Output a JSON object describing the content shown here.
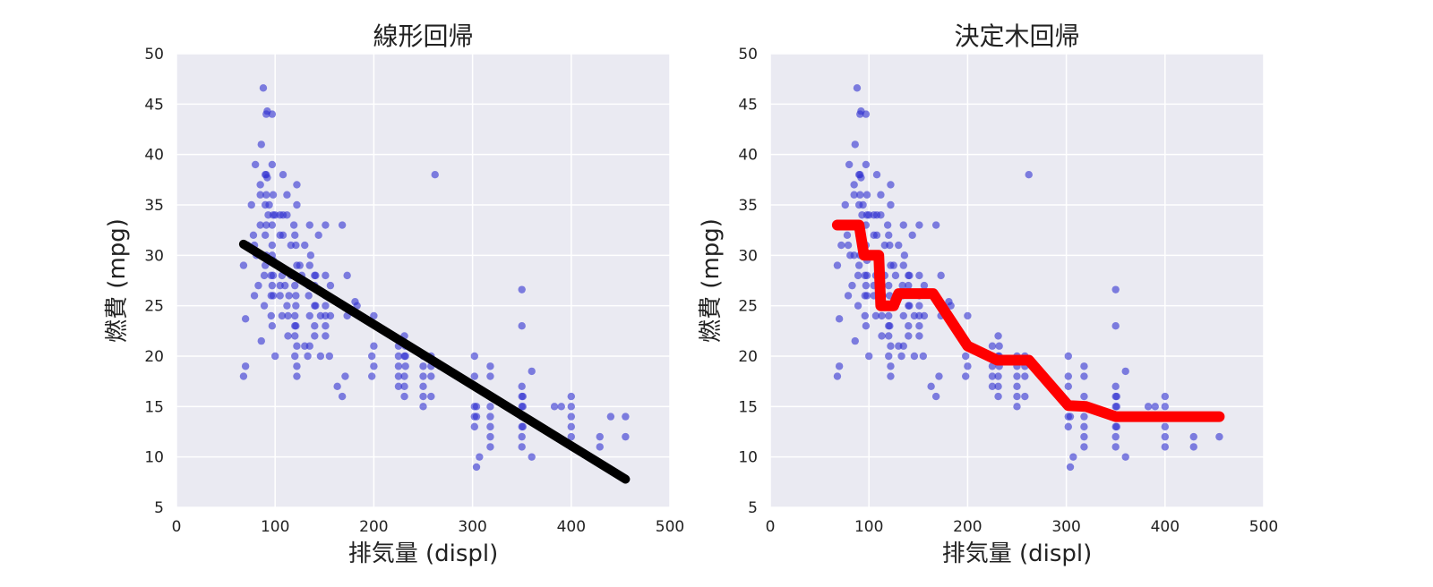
{
  "chart_data": [
    {
      "type": "scatter",
      "title": "線形回帰",
      "xlabel": "排気量 (displ)",
      "ylabel": "燃費 (mpg)",
      "xlim": [
        0,
        500
      ],
      "ylim": [
        5,
        50
      ],
      "xticks": [
        "0",
        "100",
        "200",
        "300",
        "400",
        "500"
      ],
      "yticks": [
        "5",
        "10",
        "15",
        "20",
        "25",
        "30",
        "35",
        "40",
        "45",
        "50"
      ],
      "grid": true,
      "point_color": "#3030d0",
      "fit_color": "#000000",
      "points": [
        [
          68,
          29
        ],
        [
          68,
          18
        ],
        [
          70,
          19
        ],
        [
          70,
          23.7
        ],
        [
          72,
          31
        ],
        [
          76,
          35
        ],
        [
          78,
          32
        ],
        [
          79,
          26
        ],
        [
          79,
          31
        ],
        [
          80,
          39
        ],
        [
          81,
          30
        ],
        [
          83,
          27
        ],
        [
          85,
          36
        ],
        [
          85,
          33
        ],
        [
          85,
          37
        ],
        [
          85,
          30
        ],
        [
          86,
          21.5
        ],
        [
          86,
          41
        ],
        [
          88,
          46.6
        ],
        [
          89,
          25
        ],
        [
          89,
          28
        ],
        [
          90,
          38
        ],
        [
          90,
          32
        ],
        [
          90,
          29
        ],
        [
          90,
          35
        ],
        [
          91,
          33
        ],
        [
          91,
          44
        ],
        [
          91,
          38
        ],
        [
          91,
          36
        ],
        [
          91,
          30
        ],
        [
          92,
          44.3
        ],
        [
          92,
          37.7
        ],
        [
          93,
          34
        ],
        [
          94,
          35
        ],
        [
          96,
          28
        ],
        [
          96,
          26
        ],
        [
          96,
          24
        ],
        [
          97,
          33
        ],
        [
          97,
          27
        ],
        [
          97,
          23
        ],
        [
          97,
          44
        ],
        [
          97,
          39
        ],
        [
          97,
          31
        ],
        [
          97,
          30
        ],
        [
          98,
          36
        ],
        [
          98,
          28
        ],
        [
          98,
          26
        ],
        [
          98,
          34
        ],
        [
          98,
          29.5
        ],
        [
          100,
          20
        ],
        [
          100,
          34
        ],
        [
          105,
          34
        ],
        [
          105,
          32
        ],
        [
          105,
          27
        ],
        [
          105,
          26
        ],
        [
          107,
          24
        ],
        [
          107,
          28
        ],
        [
          108,
          32
        ],
        [
          108,
          38
        ],
        [
          108,
          34
        ],
        [
          110,
          27
        ],
        [
          112,
          36
        ],
        [
          112,
          34
        ],
        [
          112,
          25
        ],
        [
          113,
          24
        ],
        [
          113,
          22
        ],
        [
          114,
          26
        ],
        [
          116,
          28
        ],
        [
          116,
          31
        ],
        [
          119,
          33
        ],
        [
          120,
          20
        ],
        [
          120,
          27
        ],
        [
          120,
          24
        ],
        [
          120,
          23
        ],
        [
          120,
          22
        ],
        [
          120,
          32
        ],
        [
          121,
          31
        ],
        [
          121,
          26
        ],
        [
          121,
          23
        ],
        [
          121,
          25
        ],
        [
          122,
          29
        ],
        [
          122,
          35
        ],
        [
          122,
          21
        ],
        [
          122,
          19
        ],
        [
          122,
          18
        ],
        [
          122,
          37
        ],
        [
          125,
          29
        ],
        [
          127,
          28
        ],
        [
          130,
          31
        ],
        [
          130,
          21
        ],
        [
          133,
          20
        ],
        [
          134,
          26
        ],
        [
          134,
          27
        ],
        [
          135,
          29
        ],
        [
          135,
          33
        ],
        [
          135,
          21
        ],
        [
          135,
          24
        ],
        [
          136,
          30
        ],
        [
          140,
          22
        ],
        [
          140,
          25
        ],
        [
          140,
          23
        ],
        [
          140,
          27
        ],
        [
          140,
          28
        ],
        [
          141,
          25
        ],
        [
          141,
          28
        ],
        [
          144,
          32
        ],
        [
          146,
          24
        ],
        [
          146,
          20
        ],
        [
          151,
          26
        ],
        [
          151,
          25
        ],
        [
          151,
          24
        ],
        [
          151,
          28
        ],
        [
          151,
          22
        ],
        [
          151,
          23
        ],
        [
          151,
          33
        ],
        [
          155,
          20
        ],
        [
          156,
          27
        ],
        [
          156,
          24
        ],
        [
          163,
          17
        ],
        [
          168,
          16
        ],
        [
          168,
          33
        ],
        [
          171,
          18
        ],
        [
          173,
          28
        ],
        [
          173,
          24
        ],
        [
          181,
          25.4
        ],
        [
          183,
          25
        ],
        [
          198,
          20
        ],
        [
          198,
          18
        ],
        [
          200,
          19
        ],
        [
          200,
          21
        ],
        [
          200,
          24
        ],
        [
          225,
          17
        ],
        [
          225,
          18
        ],
        [
          225,
          19
        ],
        [
          225,
          20
        ],
        [
          225,
          21
        ],
        [
          231,
          22
        ],
        [
          231,
          20
        ],
        [
          231,
          17
        ],
        [
          231,
          18
        ],
        [
          231,
          16
        ],
        [
          232,
          19
        ],
        [
          232,
          20
        ],
        [
          232,
          21
        ],
        [
          250,
          15
        ],
        [
          250,
          16
        ],
        [
          250,
          17
        ],
        [
          250,
          18
        ],
        [
          250,
          19
        ],
        [
          250,
          20
        ],
        [
          258,
          16
        ],
        [
          258,
          18
        ],
        [
          258,
          19
        ],
        [
          258,
          20
        ],
        [
          262,
          38
        ],
        [
          267,
          19
        ],
        [
          302,
          13
        ],
        [
          302,
          14
        ],
        [
          302,
          15
        ],
        [
          302,
          17
        ],
        [
          302,
          20
        ],
        [
          302,
          18
        ],
        [
          304,
          9
        ],
        [
          304,
          15
        ],
        [
          304,
          14
        ],
        [
          307,
          10
        ],
        [
          318,
          12
        ],
        [
          318,
          13
        ],
        [
          318,
          14
        ],
        [
          318,
          15
        ],
        [
          318,
          16
        ],
        [
          318,
          18
        ],
        [
          318,
          19
        ],
        [
          318,
          11
        ],
        [
          350,
          11
        ],
        [
          350,
          12
        ],
        [
          350,
          13
        ],
        [
          350,
          14
        ],
        [
          350,
          15
        ],
        [
          350,
          16
        ],
        [
          350,
          17
        ],
        [
          350,
          23
        ],
        [
          350,
          26.6
        ],
        [
          351,
          13
        ],
        [
          351,
          14
        ],
        [
          351,
          15
        ],
        [
          351,
          16
        ],
        [
          360,
          10
        ],
        [
          360,
          18.5
        ],
        [
          383,
          15
        ],
        [
          390,
          15
        ],
        [
          400,
          11
        ],
        [
          400,
          12
        ],
        [
          400,
          13
        ],
        [
          400,
          14
        ],
        [
          400,
          15
        ],
        [
          400,
          16
        ],
        [
          429,
          11
        ],
        [
          429,
          12
        ],
        [
          440,
          14
        ],
        [
          455,
          12
        ],
        [
          455,
          14
        ]
      ],
      "fit_line": {
        "x": [
          68,
          455
        ],
        "y": [
          31.1,
          7.8
        ]
      }
    },
    {
      "type": "scatter",
      "title": "決定木回帰",
      "xlabel": "排気量 (displ)",
      "ylabel": "燃費 (mpg)",
      "xlim": [
        0,
        500
      ],
      "ylim": [
        5,
        50
      ],
      "xticks": [
        "0",
        "100",
        "200",
        "300",
        "400",
        "500"
      ],
      "yticks": [
        "5",
        "10",
        "15",
        "20",
        "25",
        "30",
        "35",
        "40",
        "45",
        "50"
      ],
      "grid": true,
      "point_color": "#3030d0",
      "fit_color": "#ff0000",
      "fit_line": {
        "x": [
          68,
          90,
          95,
          100,
          107,
          110,
          112,
          116,
          125,
          130,
          135,
          165,
          200,
          230,
          262,
          302,
          320,
          350,
          455
        ],
        "y": [
          33,
          33,
          30,
          30,
          30,
          30,
          25,
          25,
          25,
          26.2,
          26.2,
          26.2,
          21,
          19.6,
          19.6,
          15.1,
          15,
          14,
          14
        ]
      }
    }
  ]
}
